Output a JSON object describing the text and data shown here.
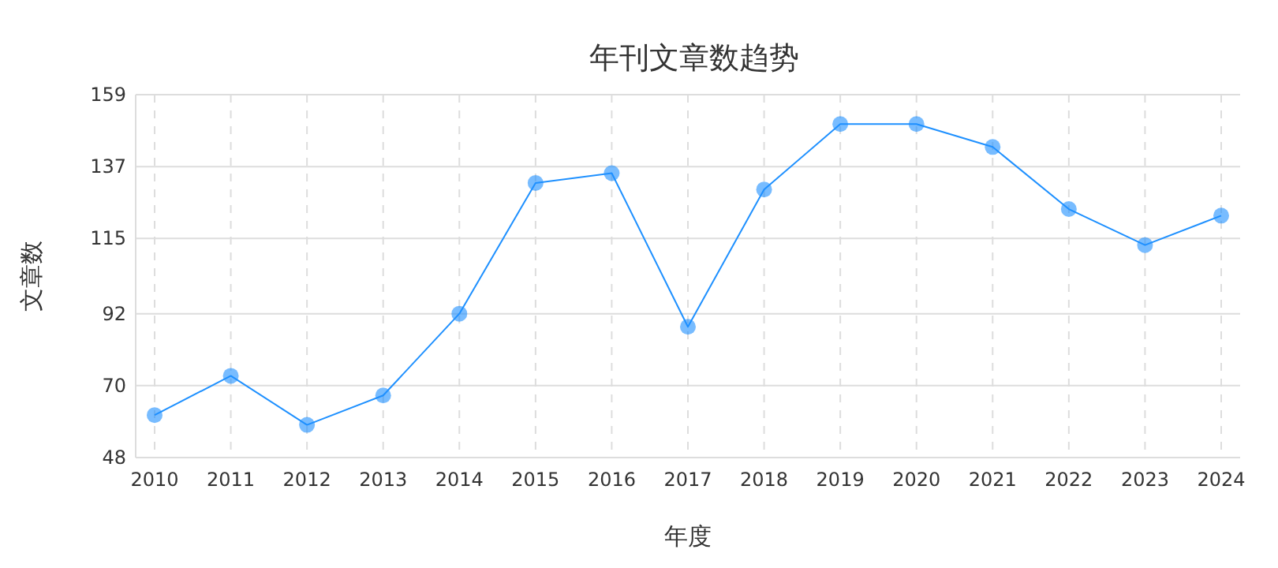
{
  "chart_data": {
    "type": "line",
    "title": "年刊文章数趋势",
    "xlabel": "年度",
    "ylabel": "文章数",
    "categories": [
      "2010",
      "2011",
      "2012",
      "2013",
      "2014",
      "2015",
      "2016",
      "2017",
      "2018",
      "2019",
      "2020",
      "2021",
      "2022",
      "2023",
      "2024"
    ],
    "series": [
      {
        "color": "#1e90ff",
        "values": [
          61,
          73,
          58,
          67,
          92,
          132,
          135,
          88,
          130,
          150,
          150,
          143,
          124,
          113,
          122
        ]
      }
    ],
    "ylim": [
      48,
      159
    ],
    "yticks": [
      48,
      70,
      92,
      115,
      137,
      159
    ],
    "grid": true,
    "marker": "circle",
    "line_style": "solid"
  }
}
